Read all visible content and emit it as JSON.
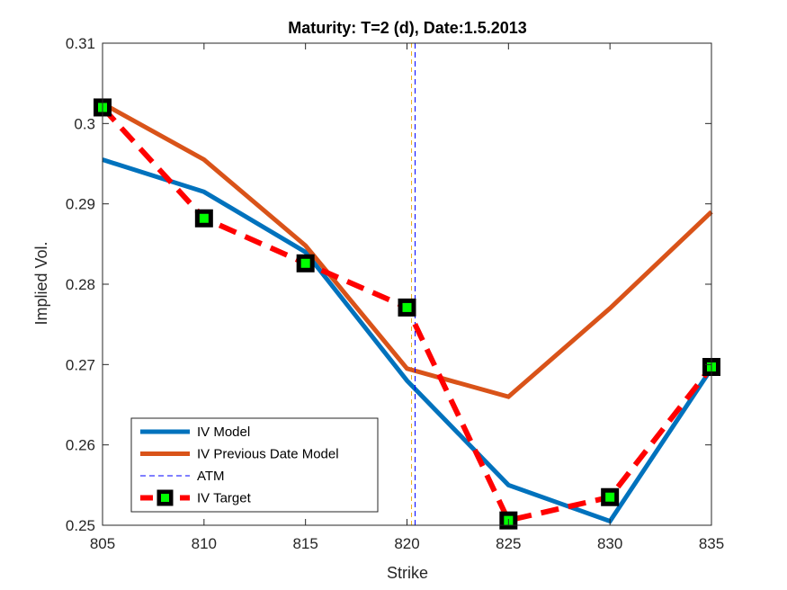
{
  "chart_data": {
    "type": "line",
    "title": "Maturity: T=2 (d), Date:1.5.2013",
    "xlabel": "Strike",
    "ylabel": "Implied Vol.",
    "xlim": [
      805,
      835
    ],
    "ylim": [
      0.25,
      0.31
    ],
    "xticks": [
      805,
      810,
      815,
      820,
      825,
      830,
      835
    ],
    "xtick_labels": [
      "805",
      "810",
      "815",
      "820",
      "825",
      "830",
      "835"
    ],
    "yticks": [
      0.25,
      0.26,
      0.27,
      0.28,
      0.29,
      0.3,
      0.31
    ],
    "ytick_labels": [
      "0.25",
      "0.26",
      "0.27",
      "0.28",
      "0.29",
      "0.3",
      "0.31"
    ],
    "grid": false,
    "legend_position": "bottom-left",
    "atm_strike": 820.4,
    "series": [
      {
        "name": "IV Model",
        "color": "#0072BD",
        "style": "solid",
        "x": [
          805,
          810,
          815,
          820,
          825,
          830,
          835
        ],
        "y": [
          0.2955,
          0.2915,
          0.284,
          0.268,
          0.255,
          0.2505,
          0.2695
        ]
      },
      {
        "name": "IV Previous Date Model",
        "color": "#D95319",
        "style": "solid",
        "x": [
          805,
          810,
          815,
          820,
          825,
          830,
          835
        ],
        "y": [
          0.3025,
          0.2955,
          0.2848,
          0.2695,
          0.266,
          0.277,
          0.289
        ]
      },
      {
        "name": "ATM",
        "color": "#0000FF",
        "style": "dashed-thin",
        "x": [
          820.4,
          820.4
        ],
        "y": [
          0.25,
          0.31
        ]
      },
      {
        "name": "IV Target",
        "color": "#FF0000",
        "marker_color": "#00FF00",
        "style": "dashed-markers",
        "x": [
          805,
          810,
          815,
          820,
          825,
          830,
          835
        ],
        "y": [
          0.302,
          0.2882,
          0.2826,
          0.2771,
          0.2506,
          0.2535,
          0.2697
        ]
      }
    ]
  }
}
